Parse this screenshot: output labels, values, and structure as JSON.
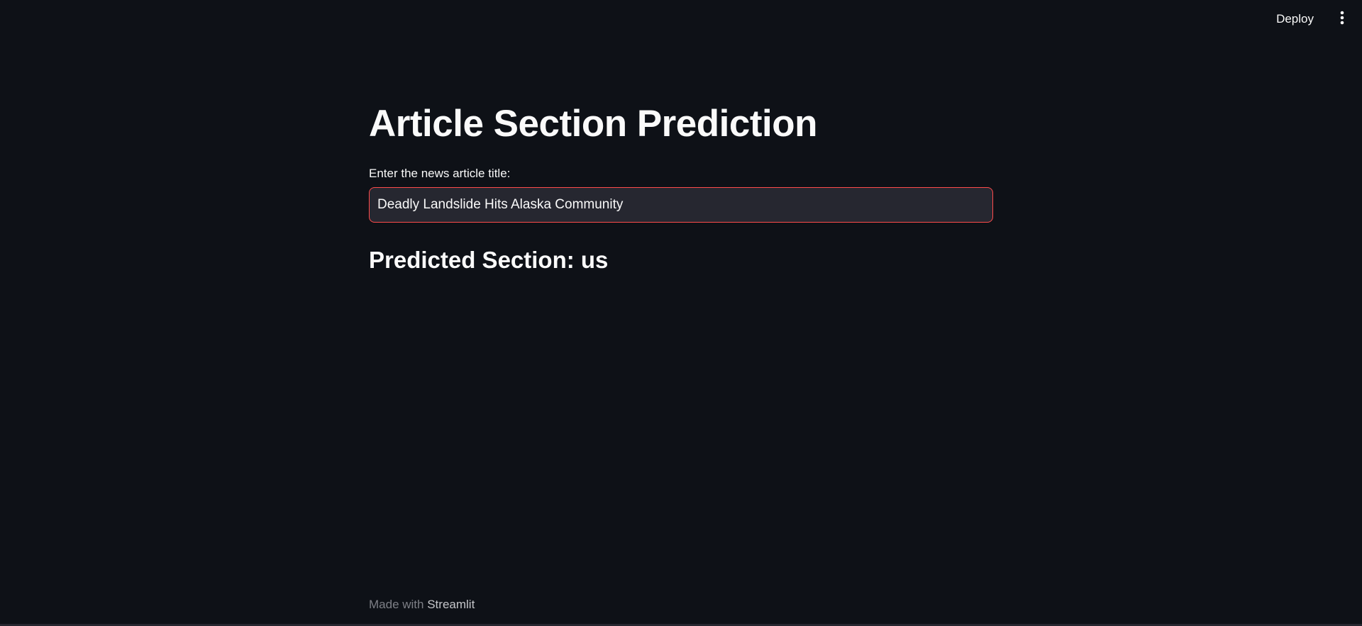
{
  "toolbar": {
    "deploy_label": "Deploy",
    "menu_icon": "more-vertical-icon"
  },
  "main": {
    "title": "Article Section Prediction",
    "input": {
      "label": "Enter the news article title:",
      "value": "Deadly Landslide Hits Alaska Community"
    },
    "result": "Predicted Section: us"
  },
  "footer": {
    "prefix": "Made with",
    "link": "Streamlit"
  },
  "colors": {
    "background": "#0e1117",
    "input_background": "#262730",
    "input_focus_border": "#ff4b4b",
    "text": "#fafafa"
  }
}
